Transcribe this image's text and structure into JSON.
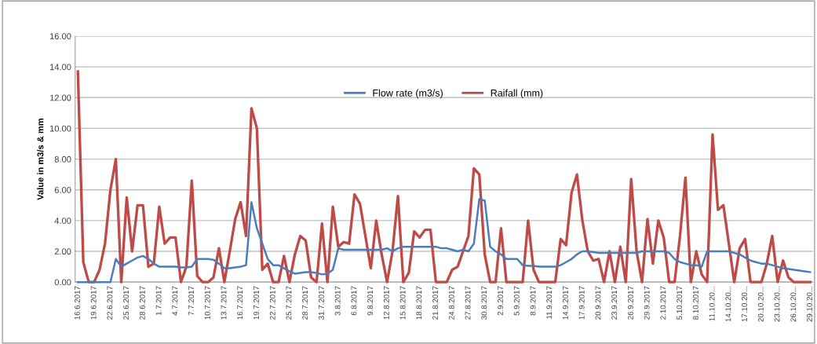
{
  "chart_data": {
    "type": "line",
    "ylabel": "Value in m3/s & mm",
    "categories": [
      "16.6.2017",
      null,
      null,
      "19.6.2017",
      null,
      null,
      "22.6.2017",
      null,
      null,
      "25.6.2017",
      null,
      null,
      "28.6.2017",
      null,
      null,
      "1.7.2017",
      null,
      null,
      "4.7.2017",
      null,
      null,
      "7.7.2017",
      null,
      null,
      "10.7.2017",
      null,
      null,
      "13.7.2017",
      null,
      null,
      "16.7.2017",
      null,
      null,
      "19.7.2017",
      null,
      null,
      "22.7.2017",
      null,
      null,
      "25.7.2017",
      null,
      null,
      "28.7.2017",
      null,
      null,
      "31.7.2017",
      null,
      null,
      "3.8.2017",
      null,
      null,
      "6.8.2017",
      null,
      null,
      "9.8.2017",
      null,
      null,
      "12.8.2017",
      null,
      null,
      "15.8.2017",
      null,
      null,
      "18.8.2017",
      null,
      null,
      "21.8.2017",
      null,
      null,
      "24.8.2017",
      null,
      null,
      "27.8.2017",
      null,
      null,
      "30.8.2017",
      null,
      null,
      "2.9.2017",
      null,
      null,
      "5.9.2017",
      null,
      null,
      "8.9.2017",
      null,
      null,
      "11.9.2017",
      null,
      null,
      "14.9.2017",
      null,
      null,
      "17.9.2017",
      null,
      null,
      "20.9.2017",
      null,
      null,
      "23.9.2017",
      null,
      null,
      "26.9.2017",
      null,
      null,
      "29.9.2017",
      null,
      null,
      "2.10.2017",
      null,
      null,
      "5.10.2017",
      null,
      null,
      "8.10.2017",
      null,
      null,
      "11.10.20...",
      null,
      null,
      "14.10.20...",
      null,
      null,
      "17.10.20...",
      null,
      null,
      "20.10.20...",
      null,
      null,
      "23.10.20...",
      null,
      null,
      "26.10.20...",
      null,
      null,
      "29.10.20..."
    ],
    "series": [
      {
        "name": "Flow rate (m3/s)",
        "color": "#4a7ebb",
        "values": [
          0,
          0,
          0,
          0,
          0,
          0,
          0,
          1.5,
          1.0,
          1.2,
          1.4,
          1.6,
          1.7,
          1.5,
          1.2,
          1.0,
          1.0,
          1.0,
          1.0,
          0.95,
          0.95,
          1.0,
          1.5,
          1.5,
          1.5,
          1.45,
          1.2,
          0.9,
          0.9,
          0.95,
          1.0,
          1.1,
          5.2,
          3.5,
          2.5,
          1.5,
          1.1,
          1.1,
          0.9,
          0.7,
          0.55,
          0.6,
          0.65,
          0.65,
          0.6,
          0.5,
          0.55,
          0.8,
          2.2,
          2.1,
          2.1,
          2.1,
          2.1,
          2.1,
          2.1,
          2.1,
          2.1,
          2.2,
          2.0,
          2.2,
          2.3,
          2.3,
          2.3,
          2.3,
          2.3,
          2.3,
          2.3,
          2.2,
          2.2,
          2.1,
          2.0,
          2.1,
          2.0,
          2.5,
          5.4,
          5.3,
          2.3,
          2.0,
          1.8,
          1.5,
          1.5,
          1.5,
          1.1,
          1.05,
          1.05,
          1.0,
          1.0,
          1.0,
          1.0,
          1.1,
          1.3,
          1.5,
          1.8,
          2.0,
          2.0,
          1.95,
          1.9,
          1.9,
          1.9,
          1.9,
          1.9,
          1.9,
          1.9,
          1.9,
          2.0,
          2.0,
          2.0,
          2.0,
          2.0,
          1.9,
          1.5,
          1.3,
          1.2,
          1.1,
          1.1,
          1.0,
          2.0,
          2.0,
          2.0,
          2.0,
          2.0,
          1.9,
          1.8,
          1.6,
          1.4,
          1.3,
          1.2,
          1.2,
          1.1,
          1.0,
          0.9,
          0.85,
          0.8,
          0.75,
          0.7,
          0.65
        ]
      },
      {
        "name": "Raifall (mm)",
        "color": "#be4b48",
        "values": [
          13.7,
          1.3,
          0,
          0,
          0.8,
          2.5,
          6.0,
          8.0,
          0,
          5.5,
          2.0,
          5.0,
          5.0,
          1.0,
          1.2,
          4.9,
          2.5,
          2.9,
          2.9,
          0,
          1.0,
          6.6,
          0.4,
          0,
          0,
          0.3,
          2.2,
          0,
          2.0,
          4.1,
          5.2,
          3.0,
          11.3,
          10.0,
          0.8,
          1.2,
          0,
          0,
          1.7,
          0,
          1.8,
          3.0,
          2.7,
          0.3,
          0,
          3.8,
          0,
          4.9,
          2.3,
          2.6,
          2.5,
          5.7,
          5.1,
          3.0,
          0.9,
          4.0,
          1.8,
          0,
          2.0,
          5.6,
          0,
          0.6,
          3.3,
          2.9,
          3.4,
          3.4,
          0,
          0,
          0,
          0.8,
          1.0,
          2.0,
          3.0,
          7.4,
          7.0,
          1.8,
          0,
          0,
          3.5,
          0,
          0,
          0,
          0,
          4.0,
          0.8,
          0,
          0,
          0,
          0,
          2.8,
          2.4,
          5.8,
          7.0,
          4.0,
          2.0,
          1.4,
          1.5,
          0,
          2.0,
          0,
          2.3,
          0,
          6.7,
          2.0,
          0,
          4.1,
          1.2,
          4.0,
          2.9,
          0,
          0,
          3.0,
          6.8,
          0,
          2.0,
          0.5,
          0,
          9.6,
          4.7,
          5.0,
          2.5,
          0,
          2.2,
          2.8,
          0,
          0,
          0,
          1.2,
          3.0,
          0,
          1.4,
          0.3,
          0,
          0,
          0,
          0
        ]
      }
    ],
    "ylim": [
      0,
      16
    ],
    "yticks": [
      {
        "value": 0,
        "label": "0.00"
      },
      {
        "value": 2,
        "label": "2.00"
      },
      {
        "value": 4,
        "label": "4.00"
      },
      {
        "value": 6,
        "label": "6.00"
      },
      {
        "value": 8,
        "label": "8.00"
      },
      {
        "value": 10,
        "label": "10.00"
      },
      {
        "value": 12,
        "label": "12.00"
      },
      {
        "value": 14,
        "label": "14.00"
      },
      {
        "value": 16,
        "label": "16.00"
      }
    ],
    "grid": "y",
    "legend": "top",
    "marker": "none",
    "line_style": "solid"
  }
}
